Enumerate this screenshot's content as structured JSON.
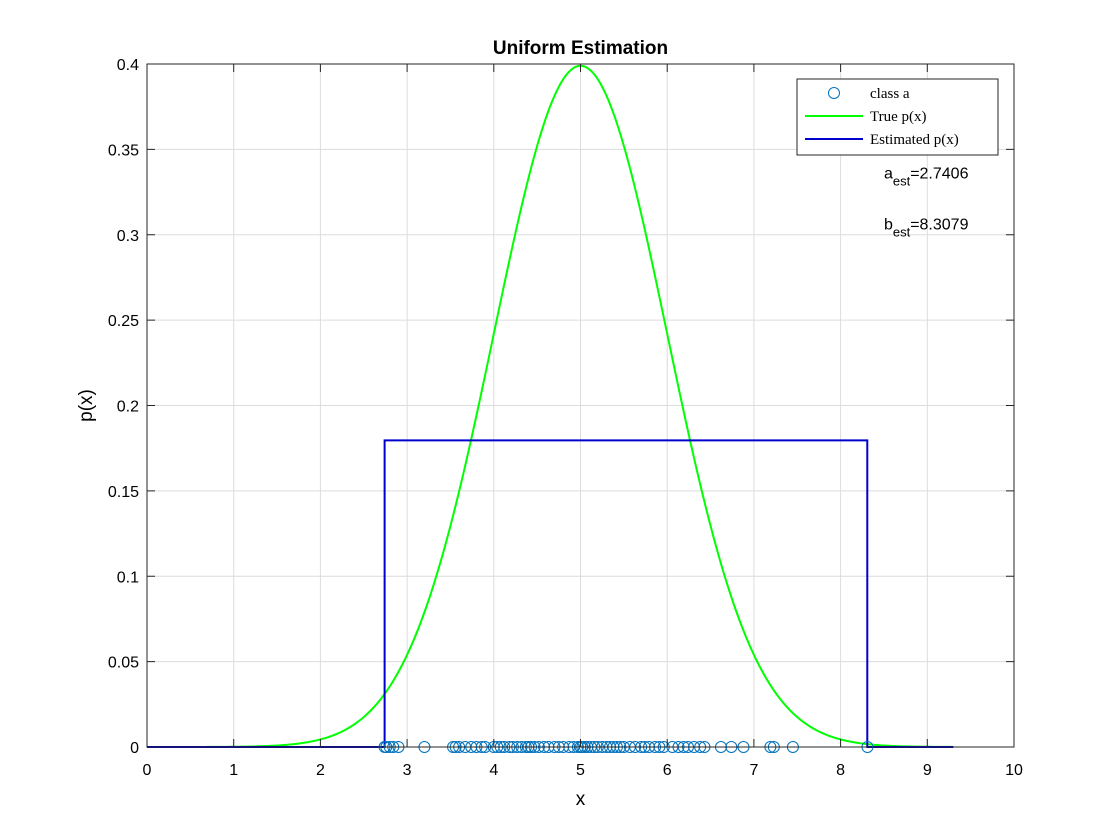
{
  "chart_data": {
    "type": "line",
    "title": "Uniform Estimation",
    "xlabel": "x",
    "ylabel": "p(x)",
    "xlim": [
      0,
      10
    ],
    "ylim": [
      0,
      0.4
    ],
    "xticks": [
      0,
      1,
      2,
      3,
      4,
      5,
      6,
      7,
      8,
      9,
      10
    ],
    "yticks": [
      0,
      0.05,
      0.1,
      0.15,
      0.2,
      0.25,
      0.3,
      0.35,
      0.4
    ],
    "xtick_labels": [
      "0",
      "1",
      "2",
      "3",
      "4",
      "5",
      "6",
      "7",
      "8",
      "9",
      "10"
    ],
    "ytick_labels": [
      "0",
      "0.05",
      "0.1",
      "0.15",
      "0.2",
      "0.25",
      "0.3",
      "0.35",
      "0.4"
    ],
    "grid": true,
    "legend_position": "top-right",
    "series": [
      {
        "name": "class a",
        "kind": "scatter",
        "marker": "circle",
        "color": "#0072BD",
        "x": [
          2.74,
          2.76,
          2.8,
          2.84,
          2.9,
          3.2,
          3.53,
          3.56,
          3.6,
          3.67,
          3.74,
          3.8,
          3.86,
          3.9,
          4.0,
          4.04,
          4.08,
          4.12,
          4.18,
          4.22,
          4.27,
          4.32,
          4.37,
          4.4,
          4.43,
          4.47,
          4.52,
          4.58,
          4.63,
          4.7,
          4.75,
          4.8,
          4.87,
          4.92,
          4.97,
          5.0,
          5.02,
          5.05,
          5.08,
          5.12,
          5.16,
          5.2,
          5.25,
          5.3,
          5.34,
          5.38,
          5.42,
          5.46,
          5.5,
          5.57,
          5.63,
          5.7,
          5.74,
          5.79,
          5.86,
          5.91,
          5.96,
          6.06,
          6.13,
          6.19,
          6.24,
          6.31,
          6.38,
          6.43,
          6.62,
          6.74,
          6.88,
          7.19,
          7.23,
          7.45,
          8.31
        ],
        "y_value": 0
      },
      {
        "name": "True p(x)",
        "kind": "line",
        "color": "#00FF00",
        "distribution": "normal",
        "mean": 5,
        "std": 1,
        "x_range": [
          0,
          9.3
        ]
      },
      {
        "name": "Estimated p(x)",
        "kind": "line",
        "color": "#0000CD",
        "x": [
          0,
          2.7406,
          2.7406,
          8.3079,
          8.3079,
          9.3
        ],
        "y": [
          0,
          0,
          0.1796,
          0.1796,
          0,
          0
        ]
      }
    ],
    "annotations": [
      {
        "base": "a",
        "sub": "est",
        "text": "=2.7406",
        "x": 8.5,
        "y": 0.333
      },
      {
        "base": "b",
        "sub": "est",
        "text": "=8.3079",
        "x": 8.5,
        "y": 0.303
      }
    ]
  }
}
